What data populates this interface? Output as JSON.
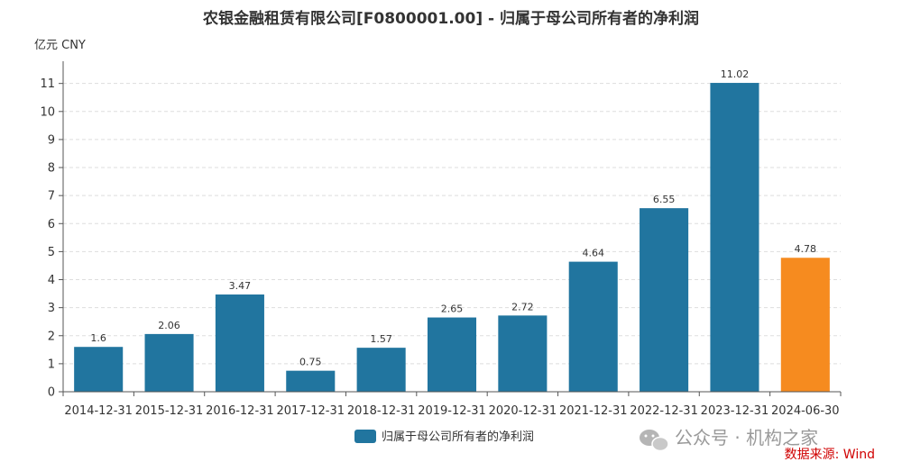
{
  "chart_data": {
    "type": "bar",
    "title": "农银金融租赁有限公司[F0800001.00] - 归属于母公司所有者的净利润",
    "unit_label": "亿元  CNY",
    "categories": [
      "2014-12-31",
      "2015-12-31",
      "2016-12-31",
      "2017-12-31",
      "2018-12-31",
      "2019-12-31",
      "2020-12-31",
      "2021-12-31",
      "2022-12-31",
      "2023-12-31",
      "2024-06-30"
    ],
    "series": [
      {
        "name": "归属于母公司所有者的净利润",
        "values": [
          1.6,
          2.06,
          3.47,
          0.75,
          1.57,
          2.65,
          2.72,
          4.64,
          6.55,
          11.02,
          4.78
        ],
        "value_labels": [
          "1.6",
          "2.06",
          "3.47",
          "0.75",
          "1.57",
          "2.65",
          "2.72",
          "4.64",
          "6.55",
          "11.02",
          "4.78"
        ],
        "color": "#21759f",
        "highlight_last_color": "#f68b1f"
      }
    ],
    "yticks": [
      0,
      1,
      2,
      3,
      4,
      5,
      6,
      7,
      8,
      9,
      10,
      11
    ],
    "ylim": [
      0,
      11.6
    ],
    "grid": true,
    "legend_position": "bottom-center"
  },
  "footer": {
    "watermark": "公众号 · 机构之家",
    "source": "数据来源: Wind"
  }
}
